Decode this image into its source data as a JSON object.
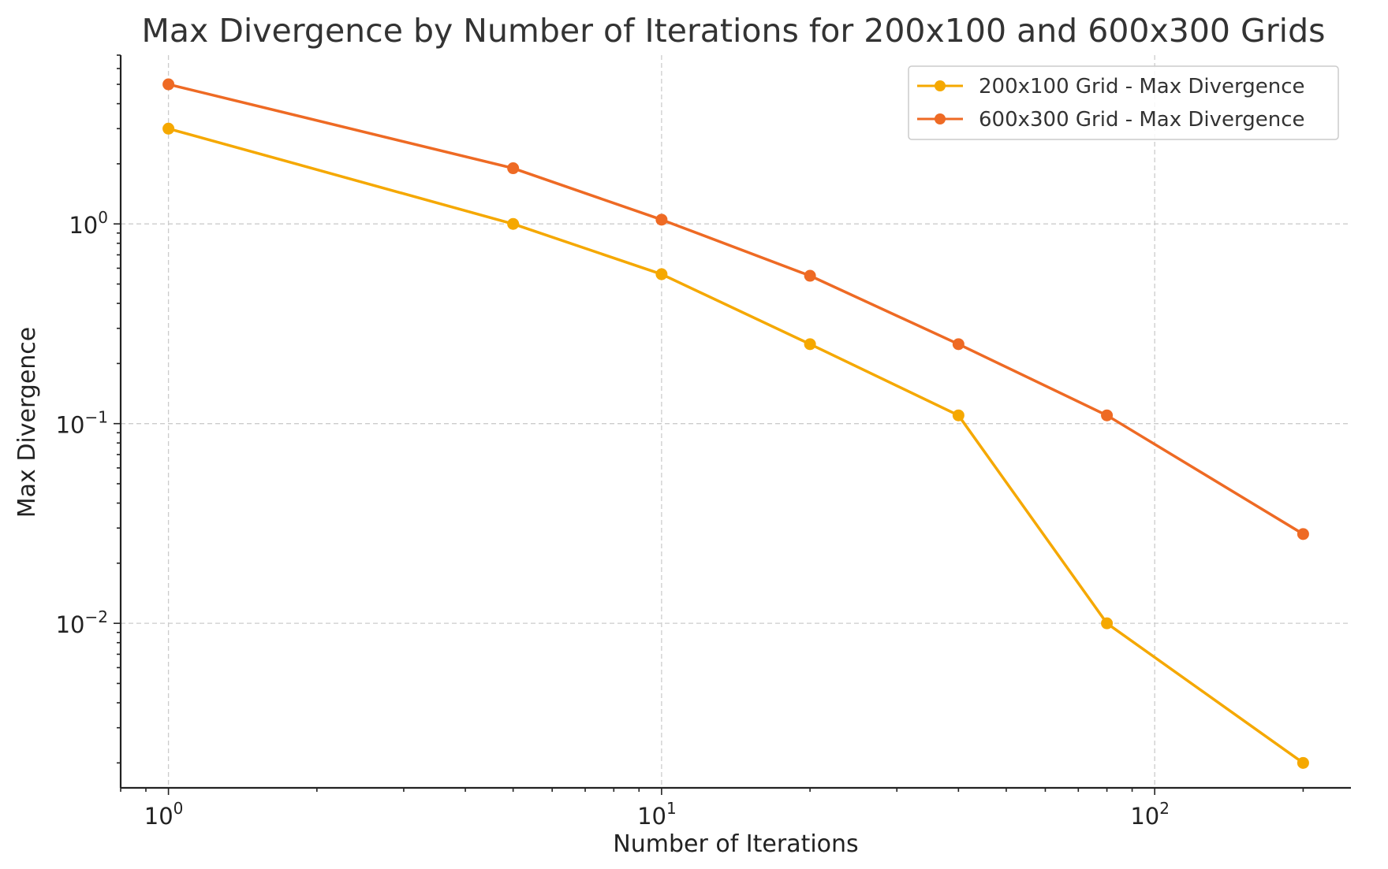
{
  "chart_data": {
    "type": "line",
    "title": "Max Divergence by Number of Iterations for 200x100 and 600x300 Grids",
    "xlabel": "Number of Iterations",
    "ylabel": "Max Divergence",
    "xscale": "log",
    "yscale": "log",
    "xlim": [
      0.8,
      250
    ],
    "ylim": [
      0.0015,
      7
    ],
    "x_ticks": [
      {
        "base": "10",
        "exp": "0",
        "value": 1
      },
      {
        "base": "10",
        "exp": "1",
        "value": 10
      },
      {
        "base": "10",
        "exp": "2",
        "value": 100
      }
    ],
    "y_ticks": [
      {
        "base": "10",
        "exp": "−2",
        "value": 0.01
      },
      {
        "base": "10",
        "exp": "−1",
        "value": 0.1
      },
      {
        "base": "10",
        "exp": "0",
        "value": 1
      }
    ],
    "grid": true,
    "legend_position": "top-right",
    "series": [
      {
        "name": "200x100 Grid - Max Divergence",
        "color": "#f5a800",
        "x": [
          1,
          5,
          10,
          20,
          40,
          80,
          200
        ],
        "y": [
          3.0,
          1.0,
          0.56,
          0.25,
          0.11,
          0.01,
          0.002
        ]
      },
      {
        "name": "600x300 Grid - Max Divergence",
        "color": "#ee6a24",
        "x": [
          1,
          5,
          10,
          20,
          40,
          80,
          200
        ],
        "y": [
          5.0,
          1.9,
          1.05,
          0.55,
          0.25,
          0.11,
          0.028
        ]
      }
    ]
  }
}
